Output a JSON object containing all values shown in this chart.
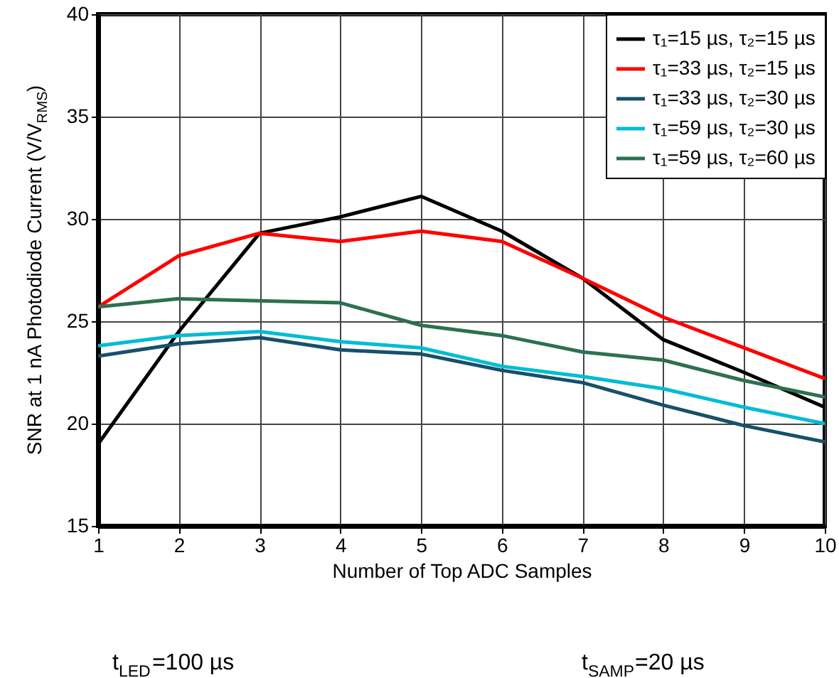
{
  "chart_data": {
    "type": "line",
    "xlabel": "Number of Top ADC Samples",
    "ylabel": "SNR at 1 nA Photodiode Current (V/V$_{RMS}$)",
    "x": [
      1,
      2,
      3,
      4,
      5,
      6,
      7,
      8,
      9,
      10
    ],
    "series": [
      {
        "name": "τ₁=15 µs, τ₂=15 µs",
        "color": "#000000",
        "values": [
          19.0,
          24.5,
          29.3,
          30.1,
          31.1,
          29.4,
          27.1,
          24.1,
          22.5,
          20.8
        ]
      },
      {
        "name": "τ₁=33 µs, τ₂=15 µs",
        "color": "#ff0000",
        "values": [
          25.7,
          28.2,
          29.3,
          28.9,
          29.4,
          28.9,
          27.1,
          25.2,
          23.7,
          22.2
        ]
      },
      {
        "name": "τ₁=33 µs, τ₂=30 µs",
        "color": "#17506a",
        "values": [
          23.3,
          23.9,
          24.2,
          23.6,
          23.4,
          22.6,
          22.0,
          20.9,
          19.9,
          19.1
        ]
      },
      {
        "name": "τ₁=59 µs, τ₂=30 µs",
        "color": "#00bcd4",
        "values": [
          23.8,
          24.3,
          24.5,
          24.0,
          23.7,
          22.8,
          22.3,
          21.7,
          20.8,
          20.0
        ]
      },
      {
        "name": "τ₁=59 µs, τ₂=60 µs",
        "color": "#2e7050",
        "values": [
          25.7,
          26.1,
          26.0,
          25.9,
          24.8,
          24.3,
          23.5,
          23.1,
          22.1,
          21.3
        ]
      }
    ],
    "xlim": [
      1,
      10
    ],
    "xticks": [
      1,
      2,
      3,
      4,
      5,
      6,
      7,
      8,
      9,
      10
    ],
    "ylim": [
      15,
      40
    ],
    "yticks": [
      15,
      20,
      25,
      30,
      35,
      40
    ],
    "grid": true,
    "legend": "top right",
    "marker": "none",
    "line_style": "solid",
    "annotations": [
      "t$_{LED}$=100 µs",
      "t$_{SAMP}$=20 µs"
    ]
  }
}
